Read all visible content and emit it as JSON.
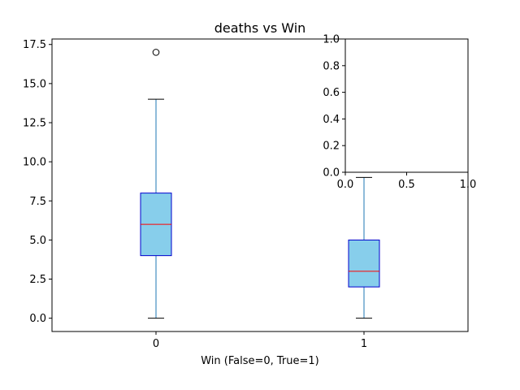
{
  "chart_data": {
    "type": "boxplot",
    "title": "deaths vs Win",
    "xlabel": "Win (False=0, True=1)",
    "ylabel": "",
    "categories": [
      "0",
      "1"
    ],
    "boxes": [
      {
        "category": "0",
        "whisker_low": 0,
        "q1": 4,
        "median": 6,
        "q3": 8,
        "whisker_high": 14,
        "outliers": [
          17
        ]
      },
      {
        "category": "1",
        "whisker_low": 0,
        "q1": 2,
        "median": 3,
        "q3": 5,
        "whisker_high": 9,
        "outliers": []
      }
    ],
    "ylim": [
      -0.85,
      17.85
    ],
    "yticks": [
      "0.0",
      "2.5",
      "5.0",
      "7.5",
      "10.0",
      "12.5",
      "15.0",
      "17.5"
    ],
    "colors": {
      "box_fill": "#87ceeb",
      "box_edge": "#0000cd",
      "median": "#ff0000",
      "whisker": "#1f77b4",
      "cap": "#000000"
    },
    "inset": {
      "xlim": [
        0,
        1
      ],
      "ylim": [
        0,
        1
      ],
      "xticks": [
        "0.0",
        "0.5",
        "1.0"
      ],
      "yticks": [
        "0.0",
        "0.2",
        "0.4",
        "0.6",
        "0.8",
        "1.0"
      ]
    }
  }
}
